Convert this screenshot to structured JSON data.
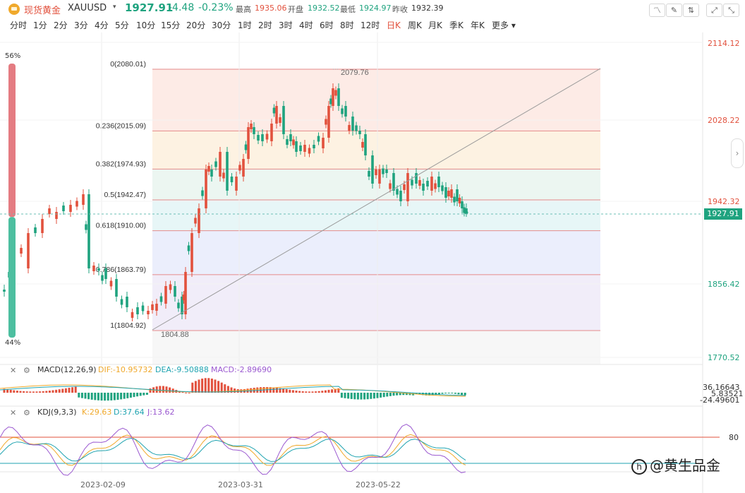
{
  "header": {
    "name": "现货黄金",
    "symbol": "XAUUSD",
    "price": "1927.91",
    "change": "-4.48",
    "change_pct": "-0.23%",
    "high_label": "最高",
    "high": "1935.06",
    "open_label": "开盘",
    "open": "1932.52",
    "low_label": "最低",
    "low": "1924.97",
    "prev_label": "昨收",
    "prev": "1932.39",
    "up_color": "#e2513d",
    "down_color": "#1fa37f",
    "tools": [
      "line-chart-icon",
      "draw-icon",
      "compare-icon",
      "fullscreen-icon"
    ]
  },
  "periods": [
    "分时",
    "1分",
    "2分",
    "3分",
    "4分",
    "5分",
    "10分",
    "15分",
    "20分",
    "30分",
    "1时",
    "2时",
    "3时",
    "4时",
    "6时",
    "8时",
    "12时",
    "日K",
    "周K",
    "月K",
    "季K",
    "年K",
    "更多"
  ],
  "active_period": "日K",
  "price_axis": [
    "2114.12",
    "2028.22",
    "1942.32",
    "1856.42",
    "1770.52"
  ],
  "current_price_tag": "1927.91",
  "ratio": {
    "top": "56%",
    "bottom": "44%",
    "top_fraction": 0.56
  },
  "fib": {
    "levels": [
      {
        "label": "0(2080.01)",
        "value": 2080.01
      },
      {
        "label": "0.236(2015.09)",
        "value": 2015.09
      },
      {
        "label": "0.382(1974.93)",
        "value": 1974.93
      },
      {
        "label": "0.5(1942.47)",
        "value": 1942.47
      },
      {
        "label": "0.618(1910.00)",
        "value": 1910.0
      },
      {
        "label": "0.786(1863.79)",
        "value": 1863.79
      },
      {
        "label": "1(1804.92)",
        "value": 1804.92
      }
    ],
    "high_mark": "2079.76",
    "low_mark": "1804.88"
  },
  "macd": {
    "title": "MACD(12,26,9)",
    "dif": "DIF:-10.95732",
    "dea": "DEA:-9.50888",
    "macd": "MACD:-2.89690",
    "axis": [
      "36.16643",
      "5.83521",
      "-24.49601"
    ]
  },
  "kdj": {
    "title": "KDJ(9,3,3)",
    "k": "K:29.63",
    "d": "D:37.64",
    "j": "J:13.62",
    "level": "80"
  },
  "x_axis": [
    "2023-02-09",
    "2023-03-31",
    "2023-05-22"
  ],
  "watermark": "@黄生品金"
}
